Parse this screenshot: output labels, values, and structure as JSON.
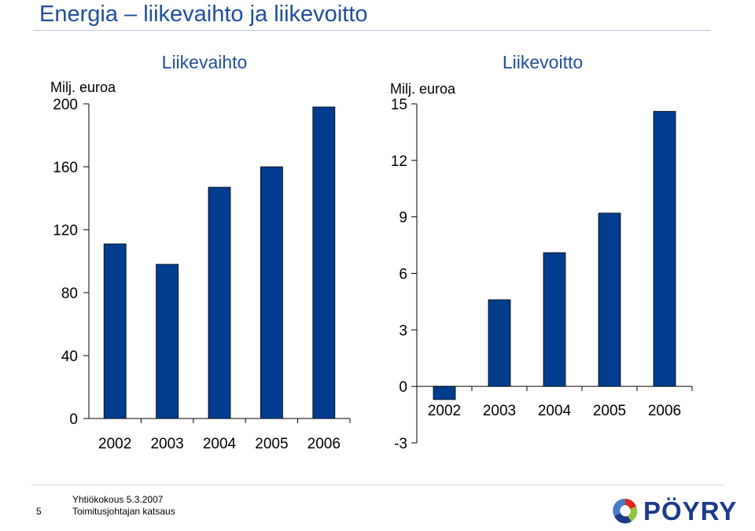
{
  "slide": {
    "title": "Energia – liikevaihto ja liikevoitto",
    "page_number": "5",
    "footer_line1": "Yhtiökokous 5.3.2007",
    "footer_line2": "Toimitusjohtajan katsaus",
    "logo_text": "PÖYRY",
    "logo_icon": "poyry-logo-icon"
  },
  "colors": {
    "bar": "#003d8f",
    "title": "#1f4e9c"
  },
  "chart_data": [
    {
      "type": "bar",
      "title": "Liikevaihto",
      "ylabel": "Milj. euroa",
      "categories": [
        "2002",
        "2003",
        "2004",
        "2005",
        "2006"
      ],
      "values": [
        111,
        98,
        147,
        160,
        198
      ],
      "ylim": [
        0,
        200
      ],
      "yticks": [
        "0",
        "40",
        "80",
        "120",
        "160",
        "200"
      ],
      "grid": false,
      "legend": "none"
    },
    {
      "type": "bar",
      "title": "Liikevoitto",
      "ylabel": "Milj. euroa",
      "categories": [
        "2002",
        "2003",
        "2004",
        "2005",
        "2006"
      ],
      "values": [
        -0.7,
        4.6,
        7.1,
        9.2,
        14.6
      ],
      "ylim": [
        -3,
        15
      ],
      "yticks": [
        "-3",
        "0",
        "3",
        "6",
        "9",
        "12",
        "15"
      ],
      "grid": false,
      "legend": "none"
    }
  ]
}
